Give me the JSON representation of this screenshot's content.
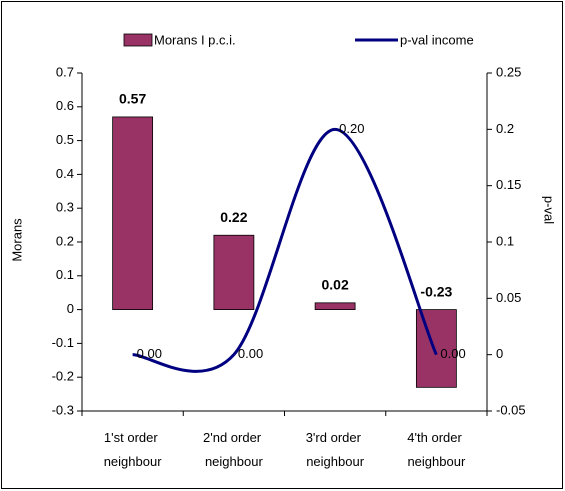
{
  "chart_data": {
    "type": "bar_line",
    "categories": [
      "1'st order neighbour",
      "2'nd order neighbour",
      "3'rd order neighbour",
      "4'th order neighbour"
    ],
    "series": [
      {
        "name": "Morans I p.c.i.",
        "type": "bar",
        "color": "#993366",
        "values": [
          0.57,
          0.22,
          0.02,
          -0.23
        ]
      },
      {
        "name": "p-val income",
        "type": "line",
        "axis": "y2",
        "color": "#000080",
        "values": [
          0,
          0,
          0.2,
          0
        ],
        "value_labels": [
          "0.00",
          "0.00",
          "0.20",
          "0.00"
        ]
      }
    ],
    "ylabel": "Morans",
    "y2label": "p-val",
    "ylim": [
      -0.3,
      0.7
    ],
    "yticks": [
      0.7,
      0.6,
      0.5,
      0.4,
      0.3,
      0.2,
      0.1,
      0,
      -0.1,
      -0.2,
      -0.3
    ],
    "y2lim": [
      -0.05,
      0.25
    ],
    "y2ticks": [
      0.25,
      0.2,
      0.15,
      0.1,
      0.05,
      0,
      -0.05
    ],
    "legend": "top"
  }
}
